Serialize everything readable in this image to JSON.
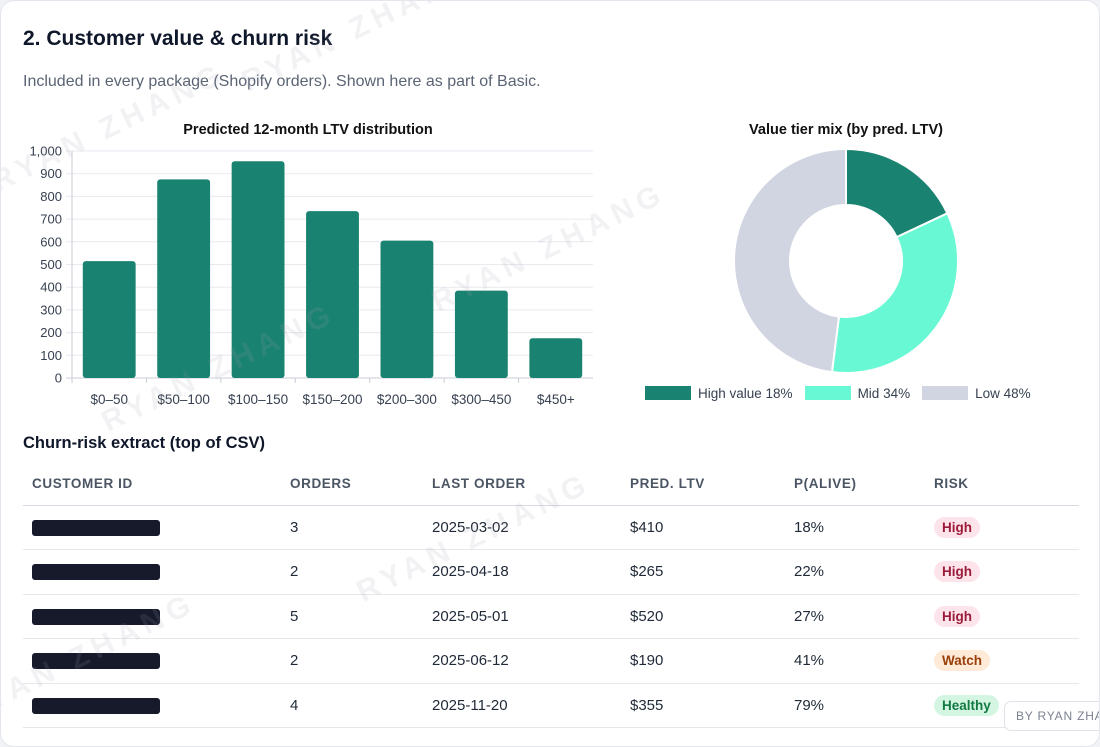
{
  "section": {
    "title": "2. Customer value & churn risk",
    "subtitle": "Included in every package (Shopify orders). Shown here as part of Basic."
  },
  "chart_data": [
    {
      "type": "bar",
      "title": "Predicted 12-month LTV distribution",
      "categories": [
        "$0–50",
        "$50–100",
        "$100–150",
        "$150–200",
        "$200–300",
        "$300–450",
        "$450+"
      ],
      "values": [
        515,
        875,
        955,
        735,
        605,
        385,
        175
      ],
      "ylim": [
        0,
        1000
      ],
      "yticks": [
        "0",
        "100",
        "200",
        "300",
        "400",
        "500",
        "600",
        "700",
        "800",
        "900",
        "1,000"
      ],
      "grid": true,
      "color": "#1a8270"
    },
    {
      "type": "pie",
      "title": "Value tier mix (by pred. LTV)",
      "labels": [
        "High value 18%",
        "Mid 34%",
        "Low 48%"
      ],
      "values": [
        18,
        34,
        48
      ],
      "colors": [
        "#1a8270",
        "#68f8d3",
        "#d0d5e1"
      ],
      "legend": "bottom"
    }
  ],
  "churn": {
    "title": "Churn-risk extract (top of CSV)",
    "columns": [
      "CUSTOMER ID",
      "ORDERS",
      "LAST ORDER",
      "PRED. LTV",
      "P(ALIVE)",
      "RISK"
    ],
    "rows": [
      {
        "orders": "3",
        "last_order": "2025-03-02",
        "ltv": "$410",
        "p_alive": "18%",
        "risk": "High",
        "risk_level": "high"
      },
      {
        "orders": "2",
        "last_order": "2025-04-18",
        "ltv": "$265",
        "p_alive": "22%",
        "risk": "High",
        "risk_level": "high"
      },
      {
        "orders": "5",
        "last_order": "2025-05-01",
        "ltv": "$520",
        "p_alive": "27%",
        "risk": "High",
        "risk_level": "high"
      },
      {
        "orders": "2",
        "last_order": "2025-06-12",
        "ltv": "$190",
        "p_alive": "41%",
        "risk": "Watch",
        "risk_level": "watch"
      },
      {
        "orders": "4",
        "last_order": "2025-11-20",
        "ltv": "$355",
        "p_alive": "79%",
        "risk": "Healthy",
        "risk_level": "healthy"
      }
    ]
  },
  "watermark": "RYAN ZHANG",
  "byline": "BY RYAN ZHANG"
}
